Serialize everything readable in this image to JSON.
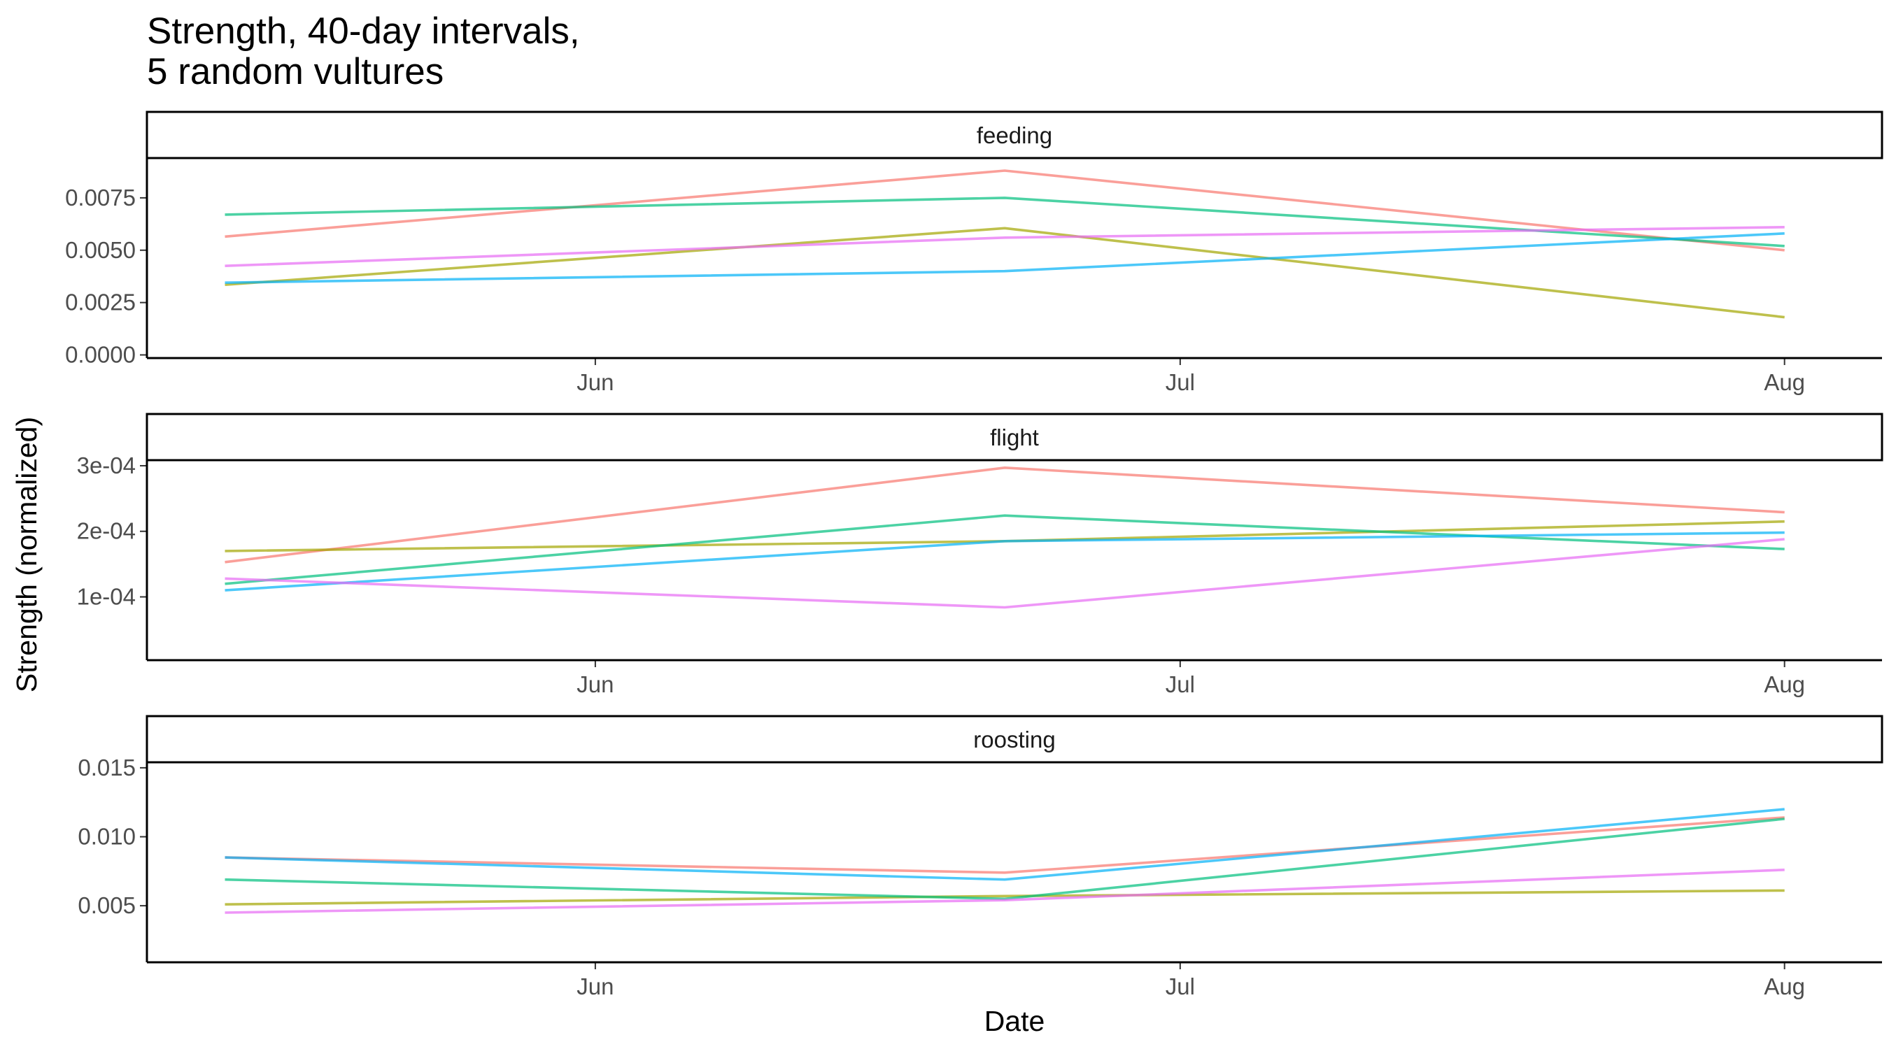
{
  "chart_data": {
    "type": "line",
    "title": "Strength, 40-day intervals,",
    "subtitle": "5 random vultures",
    "xlabel": "Date",
    "ylabel": "Strength (normalized)",
    "x_dates": [
      "2020-05-13",
      "2020-06-22",
      "2020-08-01"
    ],
    "xlim": [
      "2020-05-09",
      "2020-08-06"
    ],
    "x_ticks": [
      {
        "date": "2020-06-01",
        "label": "Jun"
      },
      {
        "date": "2020-07-01",
        "label": "Jul"
      },
      {
        "date": "2020-08-01",
        "label": "Aug"
      }
    ],
    "series_colors": [
      "#F8766D",
      "#A3A500",
      "#00BF7D",
      "#00B0F6",
      "#E76BF3"
    ],
    "line_opacity": 0.7,
    "grid": false,
    "legend": "none",
    "facets": [
      {
        "label": "feeding",
        "ylim": [
          -0.00015,
          0.0094
        ],
        "y_ticks": [
          {
            "value": 0.0,
            "label": "0.0000"
          },
          {
            "value": 0.0025,
            "label": "0.0025"
          },
          {
            "value": 0.005,
            "label": "0.0050"
          },
          {
            "value": 0.0075,
            "label": "0.0075"
          }
        ],
        "series": [
          {
            "values": [
              0.00565,
              0.0088,
              0.005
            ]
          },
          {
            "values": [
              0.00335,
              0.00605,
              0.0018
            ]
          },
          {
            "values": [
              0.0067,
              0.0075,
              0.0052
            ]
          },
          {
            "values": [
              0.00345,
              0.004,
              0.0058
            ]
          },
          {
            "values": [
              0.00425,
              0.0056,
              0.0061
            ]
          }
        ]
      },
      {
        "label": "flight",
        "ylim": [
          3.5e-06,
          0.0003085
        ],
        "y_ticks": [
          {
            "value": 0.0001,
            "label": "1e-04"
          },
          {
            "value": 0.0002,
            "label": "2e-04"
          },
          {
            "value": 0.0003,
            "label": "3e-04"
          }
        ],
        "series": [
          {
            "values": [
              0.000153,
              0.000297,
              0.000229
            ]
          },
          {
            "values": [
              0.00017,
              0.000185,
              0.000215
            ]
          },
          {
            "values": [
              0.00012,
              0.000224,
              0.000173
            ]
          },
          {
            "values": [
              0.00011,
              0.000185,
              0.000198
            ]
          },
          {
            "values": [
              0.000128,
              8.4e-05,
              0.000188
            ]
          }
        ]
      },
      {
        "label": "roosting",
        "ylim": [
          0.0009,
          0.0154
        ],
        "y_ticks": [
          {
            "value": 0.005,
            "label": "0.005"
          },
          {
            "value": 0.01,
            "label": "0.010"
          },
          {
            "value": 0.015,
            "label": "0.015"
          }
        ],
        "series": [
          {
            "values": [
              0.0085,
              0.0074,
              0.0114
            ]
          },
          {
            "values": [
              0.0051,
              0.0057,
              0.0061
            ]
          },
          {
            "values": [
              0.0069,
              0.0055,
              0.0113
            ]
          },
          {
            "values": [
              0.0085,
              0.0069,
              0.012
            ]
          },
          {
            "values": [
              0.0045,
              0.0054,
              0.0076
            ]
          }
        ]
      }
    ]
  }
}
